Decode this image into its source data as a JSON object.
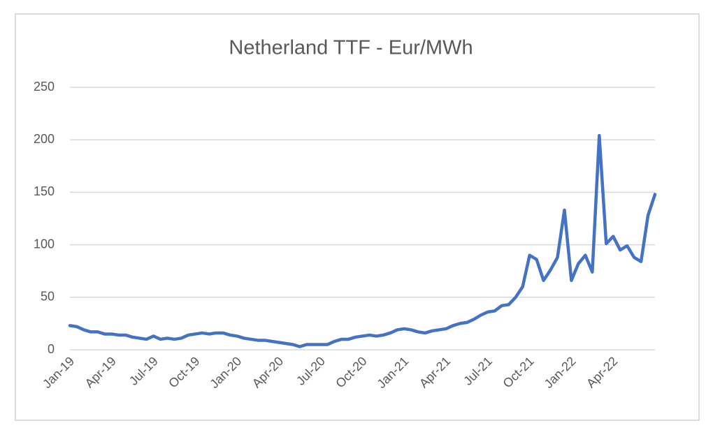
{
  "chart_data": {
    "type": "line",
    "title": "Netherland TTF - Eur/MWh",
    "categories": [
      "Jan-19",
      null,
      null,
      null,
      null,
      null,
      "Apr-19",
      null,
      null,
      null,
      null,
      null,
      "Jul-19",
      null,
      null,
      null,
      null,
      null,
      "Oct-19",
      null,
      null,
      null,
      null,
      null,
      "Jan-20",
      null,
      null,
      null,
      null,
      null,
      "Apr-20",
      null,
      null,
      null,
      null,
      null,
      "Jul-20",
      null,
      null,
      null,
      null,
      null,
      "Oct-20",
      null,
      null,
      null,
      null,
      null,
      "Jan-21",
      null,
      null,
      null,
      null,
      null,
      "Apr-21",
      null,
      null,
      null,
      null,
      null,
      "Jul-21",
      null,
      null,
      null,
      null,
      null,
      "Oct-21",
      null,
      null,
      null,
      null,
      null,
      "Jan-22",
      null,
      null,
      null,
      null,
      null,
      "Apr-22",
      null,
      null,
      null,
      null,
      null,
      null
    ],
    "values": [
      23,
      22,
      19,
      17,
      17,
      15,
      15,
      14,
      14,
      12,
      11,
      10,
      13,
      10,
      11,
      10,
      11,
      14,
      15,
      16,
      15,
      16,
      16,
      14,
      13,
      11,
      10,
      9,
      9,
      8,
      7,
      6,
      5,
      3,
      5,
      5,
      5,
      5,
      8,
      10,
      10,
      12,
      13,
      14,
      13,
      14,
      16,
      19,
      20,
      19,
      17,
      16,
      18,
      19,
      20,
      23,
      25,
      26,
      29,
      33,
      36,
      37,
      42,
      43,
      50,
      60,
      90,
      86,
      66,
      76,
      88,
      133,
      66,
      82,
      90,
      74,
      204,
      101,
      108,
      95,
      99,
      88,
      84,
      128,
      148
    ],
    "color": "#4472c4",
    "ylim": [
      0,
      250
    ],
    "yticks": [
      0,
      50,
      100,
      150,
      200,
      250
    ],
    "grid": true
  }
}
